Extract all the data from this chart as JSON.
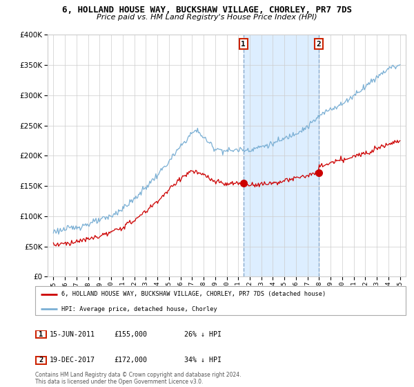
{
  "title": "6, HOLLAND HOUSE WAY, BUCKSHAW VILLAGE, CHORLEY, PR7 7DS",
  "subtitle": "Price paid vs. HM Land Registry's House Price Index (HPI)",
  "legend_line1": "6, HOLLAND HOUSE WAY, BUCKSHAW VILLAGE, CHORLEY, PR7 7DS (detached house)",
  "legend_line2": "HPI: Average price, detached house, Chorley",
  "footer": "Contains HM Land Registry data © Crown copyright and database right 2024.\nThis data is licensed under the Open Government Licence v3.0.",
  "transactions": [
    {
      "num": 1,
      "date": "15-JUN-2011",
      "price": "£155,000",
      "pct": "26% ↓ HPI",
      "x_year": 2011.45,
      "y_val": 155000
    },
    {
      "num": 2,
      "date": "19-DEC-2017",
      "price": "£172,000",
      "pct": "34% ↓ HPI",
      "x_year": 2017.96,
      "y_val": 172000
    }
  ],
  "red_line_color": "#cc0000",
  "blue_line_color": "#7aafd4",
  "vline_color": "#aaccee",
  "shade_color": "#ddeeff",
  "background_color": "#ffffff",
  "plot_bg_color": "#ffffff",
  "grid_color": "#cccccc",
  "ylim": [
    0,
    400000
  ],
  "ytick_step": 50000,
  "xlim_start": 1994.5,
  "xlim_end": 2025.5,
  "hpi_nodes_x": [
    1995,
    1996,
    1997,
    1998,
    1999,
    2000,
    2001,
    2002,
    2003,
    2004,
    2005,
    2006,
    2007,
    2007.5,
    2008,
    2009,
    2010,
    2011,
    2012,
    2013,
    2014,
    2015,
    2016,
    2017,
    2018,
    2019,
    2020,
    2021,
    2022,
    2023,
    2024,
    2025
  ],
  "hpi_nodes_y": [
    75000,
    78000,
    82000,
    87000,
    93000,
    100000,
    113000,
    128000,
    148000,
    168000,
    190000,
    215000,
    238000,
    242000,
    230000,
    212000,
    208000,
    210000,
    210000,
    215000,
    220000,
    228000,
    238000,
    248000,
    265000,
    278000,
    285000,
    300000,
    315000,
    330000,
    345000,
    350000
  ],
  "red_nodes_x": [
    1995,
    1996,
    1997,
    1998,
    1999,
    2000,
    2001,
    2002,
    2003,
    2004,
    2005,
    2006,
    2007,
    2008,
    2009,
    2010,
    2011.45,
    2012,
    2013,
    2014,
    2015,
    2016,
    2017.96,
    2018,
    2019,
    2020,
    2021,
    2022,
    2023,
    2024,
    2025
  ],
  "red_nodes_y": [
    53000,
    55000,
    58000,
    62000,
    67000,
    73000,
    82000,
    93000,
    108000,
    125000,
    143000,
    163000,
    175000,
    168000,
    157000,
    153000,
    155000,
    152000,
    153000,
    155000,
    158000,
    163000,
    172000,
    182000,
    188000,
    193000,
    198000,
    205000,
    213000,
    220000,
    225000
  ],
  "noise_scale_hpi": 2500,
  "noise_scale_red": 2000,
  "random_seed": 123
}
